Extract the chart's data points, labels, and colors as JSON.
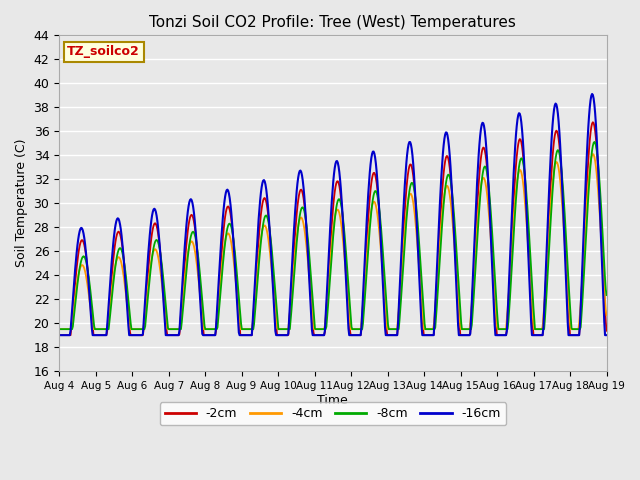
{
  "title": "Tonzi Soil CO2 Profile: Tree (West) Temperatures",
  "xlabel": "Time",
  "ylabel": "Soil Temperature (C)",
  "ylim": [
    16,
    44
  ],
  "yticks": [
    16,
    18,
    20,
    22,
    24,
    26,
    28,
    30,
    32,
    34,
    36,
    38,
    40,
    42,
    44
  ],
  "plot_bg": "#e8e8e8",
  "fig_bg": "#e8e8e8",
  "legend_label": "TZ_soilco2",
  "legend_facecolor": "#ffffdd",
  "legend_edgecolor": "#aa8800",
  "series_labels": [
    "-2cm",
    "-4cm",
    "-8cm",
    "-16cm"
  ],
  "series_colors": [
    "#cc0000",
    "#ff9900",
    "#00aa00",
    "#0000cc"
  ],
  "series_linewidths": [
    1.3,
    1.3,
    1.3,
    1.5
  ],
  "xtick_labels": [
    "Aug 4",
    "Aug 5",
    "Aug 6",
    "Aug 7",
    "Aug 8",
    "Aug 9",
    "Aug 10",
    "Aug 11",
    "Aug 12",
    "Aug 13",
    "Aug 14",
    "Aug 15",
    "Aug 16",
    "Aug 17",
    "Aug 18",
    "Aug 19"
  ],
  "n_days": 15,
  "samples_per_day": 48
}
